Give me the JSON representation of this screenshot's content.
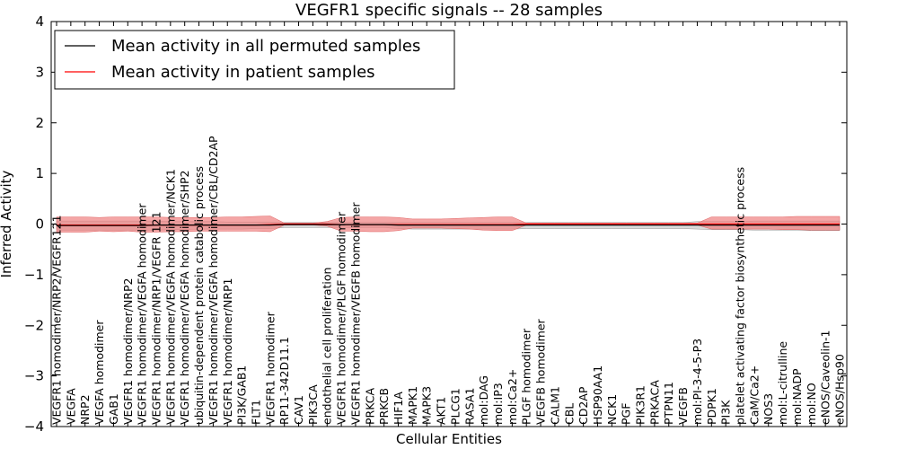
{
  "chart_data": {
    "type": "area",
    "title": "VEGFR1 specific signals -- 28 samples",
    "xlabel": "Cellular Entities",
    "ylabel": "Inferred Activity",
    "ylim": [
      -4,
      4
    ],
    "yticks": [
      -4,
      -3,
      -2,
      -1,
      0,
      1,
      2,
      3,
      4
    ],
    "legend_position": "top-left",
    "colors": {
      "permuted": "#000000",
      "patient": "#ff0000",
      "patient_band": "#f08080",
      "permuted_band": "#bbbbbb"
    },
    "categories": [
      "VEGFR1 homodimer/NRP2/VEGFR121",
      "VEGFA",
      "NRP2",
      "VEGFA homodimer",
      "GAB1",
      "VEGFR1 homodimer/NRP2",
      "VEGFR1 homodimer/VEGFA homodimer",
      "VEGFR1 homodimer/NRP1/VEGFR 121",
      "VEGFR1 homodimer/VEGFA homodimer/NCK1",
      "VEGFR1 homodimer/VEGFA homodimer/SHP2",
      "ubiquitin-dependent protein catabolic process",
      "VEGFR1 homodimer/VEGFA homodimer/CBL/CD2AP",
      "VEGFR1 homodimer/NRP1",
      "PI3K/GAB1",
      "FLT1",
      "VEGFR1 homodimer",
      "RP11-342D11.1",
      "CAV1",
      "PIK3CA",
      "endothelial cell proliferation",
      "VEGFR1 homodimer/PLGF homodimer",
      "VEGFR1 homodimer/VEGFB homodimer",
      "PRKCA",
      "PRKCB",
      "HIF1A",
      "MAPK1",
      "MAPK3",
      "AKT1",
      "PLCG1",
      "RASA1",
      "mol:DAG",
      "mol:IP3",
      "mol:Ca2+",
      "PLGF homodimer",
      "VEGFB homodimer",
      "CALM1",
      "CBL",
      "CD2AP",
      "HSP90AA1",
      "NCK1",
      "PGF",
      "PIK3R1",
      "PRKACA",
      "PTPN11",
      "VEGFB",
      "mol:PI-3-4-5-P3",
      "PDPK1",
      "PI3K",
      "platelet activating factor biosynthetic process",
      "CaM/Ca2+",
      "NOS3",
      "mol:L-citrulline",
      "mol:NADP",
      "mol:NO",
      "eNOS/Caveolin-1",
      "eNOS/Hsp90"
    ],
    "series": [
      {
        "name": "Mean activity in all permuted samples",
        "values": [
          -0.03,
          -0.03,
          -0.03,
          -0.03,
          -0.03,
          -0.03,
          -0.03,
          -0.02,
          -0.02,
          -0.02,
          -0.02,
          -0.02,
          -0.02,
          -0.02,
          -0.02,
          -0.02,
          -0.01,
          -0.01,
          -0.01,
          -0.01,
          -0.01,
          -0.01,
          -0.01,
          -0.01,
          -0.02,
          -0.02,
          -0.02,
          -0.02,
          -0.02,
          -0.02,
          -0.02,
          -0.02,
          -0.02,
          -0.02,
          -0.02,
          -0.02,
          -0.02,
          -0.02,
          -0.02,
          -0.02,
          -0.02,
          -0.02,
          -0.02,
          -0.02,
          -0.02,
          -0.02,
          -0.02,
          -0.02,
          -0.02,
          -0.02,
          -0.02,
          -0.02,
          -0.02,
          -0.02,
          -0.02,
          -0.02
        ],
        "band_upper": [
          0.06,
          0.06,
          0.06,
          0.06,
          0.06,
          0.06,
          0.06,
          0.06,
          0.05,
          0.05,
          0.05,
          0.05,
          0.04,
          0.04,
          0.04,
          0.04,
          0.03,
          0.03,
          0.03,
          0.03,
          0.03,
          0.03,
          0.03,
          0.03,
          0.03,
          0.03,
          0.03,
          0.03,
          0.03,
          0.03,
          0.03,
          0.03,
          0.03,
          0.03,
          0.03,
          0.03,
          0.03,
          0.03,
          0.03,
          0.03,
          0.03,
          0.03,
          0.03,
          0.03,
          0.03,
          0.05,
          0.05,
          0.05,
          0.05,
          0.06,
          0.06,
          0.06,
          0.06,
          0.06,
          0.06,
          0.06
        ],
        "band_lower": [
          -0.12,
          -0.12,
          -0.12,
          -0.12,
          -0.12,
          -0.12,
          -0.12,
          -0.12,
          -0.11,
          -0.11,
          -0.1,
          -0.1,
          -0.1,
          -0.1,
          -0.09,
          -0.09,
          -0.07,
          -0.07,
          -0.07,
          -0.07,
          -0.07,
          -0.07,
          -0.07,
          -0.07,
          -0.09,
          -0.1,
          -0.1,
          -0.1,
          -0.1,
          -0.1,
          -0.1,
          -0.1,
          -0.1,
          -0.09,
          -0.09,
          -0.09,
          -0.09,
          -0.09,
          -0.09,
          -0.09,
          -0.09,
          -0.09,
          -0.09,
          -0.09,
          -0.09,
          -0.1,
          -0.11,
          -0.11,
          -0.11,
          -0.12,
          -0.12,
          -0.12,
          -0.12,
          -0.13,
          -0.13,
          -0.13
        ]
      },
      {
        "name": "Mean activity in patient samples",
        "values": [
          -0.02,
          -0.02,
          -0.02,
          -0.02,
          -0.02,
          -0.02,
          -0.02,
          -0.02,
          -0.02,
          -0.02,
          -0.02,
          -0.02,
          -0.02,
          -0.02,
          -0.02,
          -0.01,
          0.0,
          0.0,
          0.0,
          0.0,
          -0.01,
          -0.01,
          -0.01,
          -0.01,
          -0.01,
          -0.01,
          -0.01,
          -0.01,
          -0.01,
          -0.01,
          -0.01,
          -0.01,
          -0.01,
          0.0,
          0.0,
          0.0,
          0.0,
          0.0,
          0.0,
          0.0,
          0.0,
          0.0,
          0.0,
          0.0,
          0.0,
          0.0,
          0.0,
          0.0,
          0.0,
          0.0,
          0.0,
          0.0,
          0.0,
          0.0,
          0.0,
          0.0
        ],
        "band_upper": [
          0.14,
          0.14,
          0.14,
          0.13,
          0.14,
          0.14,
          0.14,
          0.14,
          0.13,
          0.13,
          0.13,
          0.13,
          0.14,
          0.14,
          0.15,
          0.16,
          0.02,
          0.02,
          0.02,
          0.05,
          0.13,
          0.14,
          0.14,
          0.14,
          0.13,
          0.1,
          0.1,
          0.1,
          0.11,
          0.12,
          0.13,
          0.14,
          0.14,
          0.02,
          0.02,
          0.02,
          0.02,
          0.02,
          0.02,
          0.02,
          0.02,
          0.02,
          0.02,
          0.02,
          0.02,
          0.02,
          0.14,
          0.14,
          0.14,
          0.14,
          0.14,
          0.14,
          0.15,
          0.15,
          0.15,
          0.15
        ],
        "band_lower": [
          -0.16,
          -0.16,
          -0.16,
          -0.14,
          -0.15,
          -0.14,
          -0.16,
          -0.16,
          -0.15,
          -0.15,
          -0.14,
          -0.14,
          -0.14,
          -0.14,
          -0.14,
          -0.15,
          -0.02,
          -0.02,
          -0.02,
          -0.04,
          -0.14,
          -0.14,
          -0.15,
          -0.15,
          -0.13,
          -0.08,
          -0.08,
          -0.08,
          -0.09,
          -0.1,
          -0.12,
          -0.13,
          -0.13,
          -0.02,
          -0.02,
          -0.02,
          -0.02,
          -0.02,
          -0.02,
          -0.02,
          -0.02,
          -0.02,
          -0.02,
          -0.02,
          -0.02,
          -0.02,
          -0.1,
          -0.1,
          -0.1,
          -0.1,
          -0.1,
          -0.11,
          -0.11,
          -0.12,
          -0.12,
          -0.12
        ]
      }
    ]
  }
}
